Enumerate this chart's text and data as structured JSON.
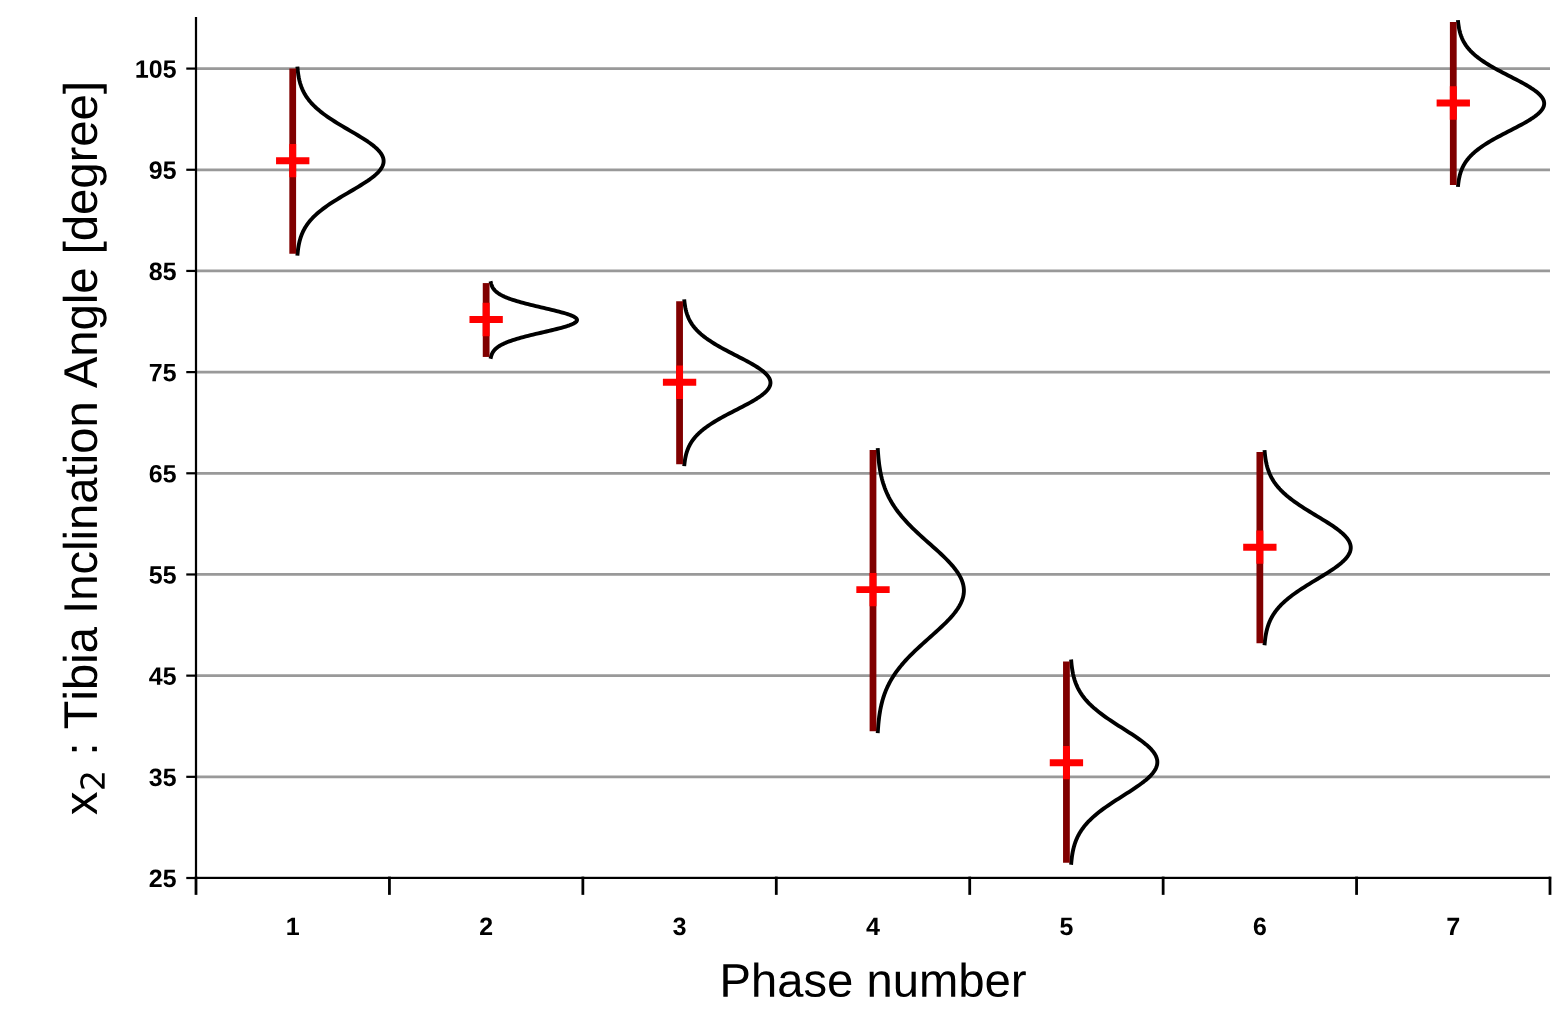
{
  "chart_data": {
    "type": "bar",
    "xlabel": "Phase number",
    "ylabel": "x$_{2}$ : Tibia Inclination Angle [degree]",
    "categories": [
      "1",
      "2",
      "3",
      "4",
      "5",
      "6",
      "7"
    ],
    "series": [
      {
        "color": "#800000",
        "base": [
          86.7,
          76.5,
          65.9,
          39.5,
          26.5,
          48.2,
          93.5
        ],
        "values": [
          18.3,
          7.3,
          16.1,
          27.8,
          19.9,
          18.9,
          16.1
        ]
      },
      {
        "type": "scatter",
        "color": "#ff0000",
        "marker": "cross",
        "values": [
          95.9,
          80.2,
          74.0,
          53.5,
          36.4,
          57.7,
          101.6
        ]
      }
    ],
    "ylim": [
      25,
      110
    ],
    "yticks": [
      25,
      35,
      45,
      55,
      65,
      75,
      85,
      95,
      105
    ],
    "grid": "y",
    "legend": false
  }
}
